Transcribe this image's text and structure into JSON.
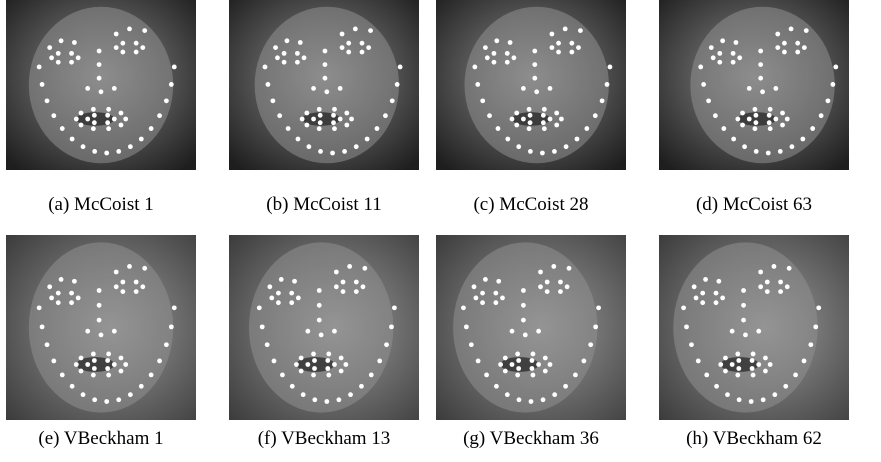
{
  "figure": {
    "panels": [
      {
        "caption": "(a) McCoist 1"
      },
      {
        "caption": "(b) McCoist 11"
      },
      {
        "caption": "(c) McCoist 28"
      },
      {
        "caption": "(d) McCoist 63"
      },
      {
        "caption": "(e) VBeckham 1"
      },
      {
        "caption": "(f) VBeckham 13"
      },
      {
        "caption": "(g) VBeckham 36"
      },
      {
        "caption": "(h) VBeckham 62"
      }
    ]
  }
}
